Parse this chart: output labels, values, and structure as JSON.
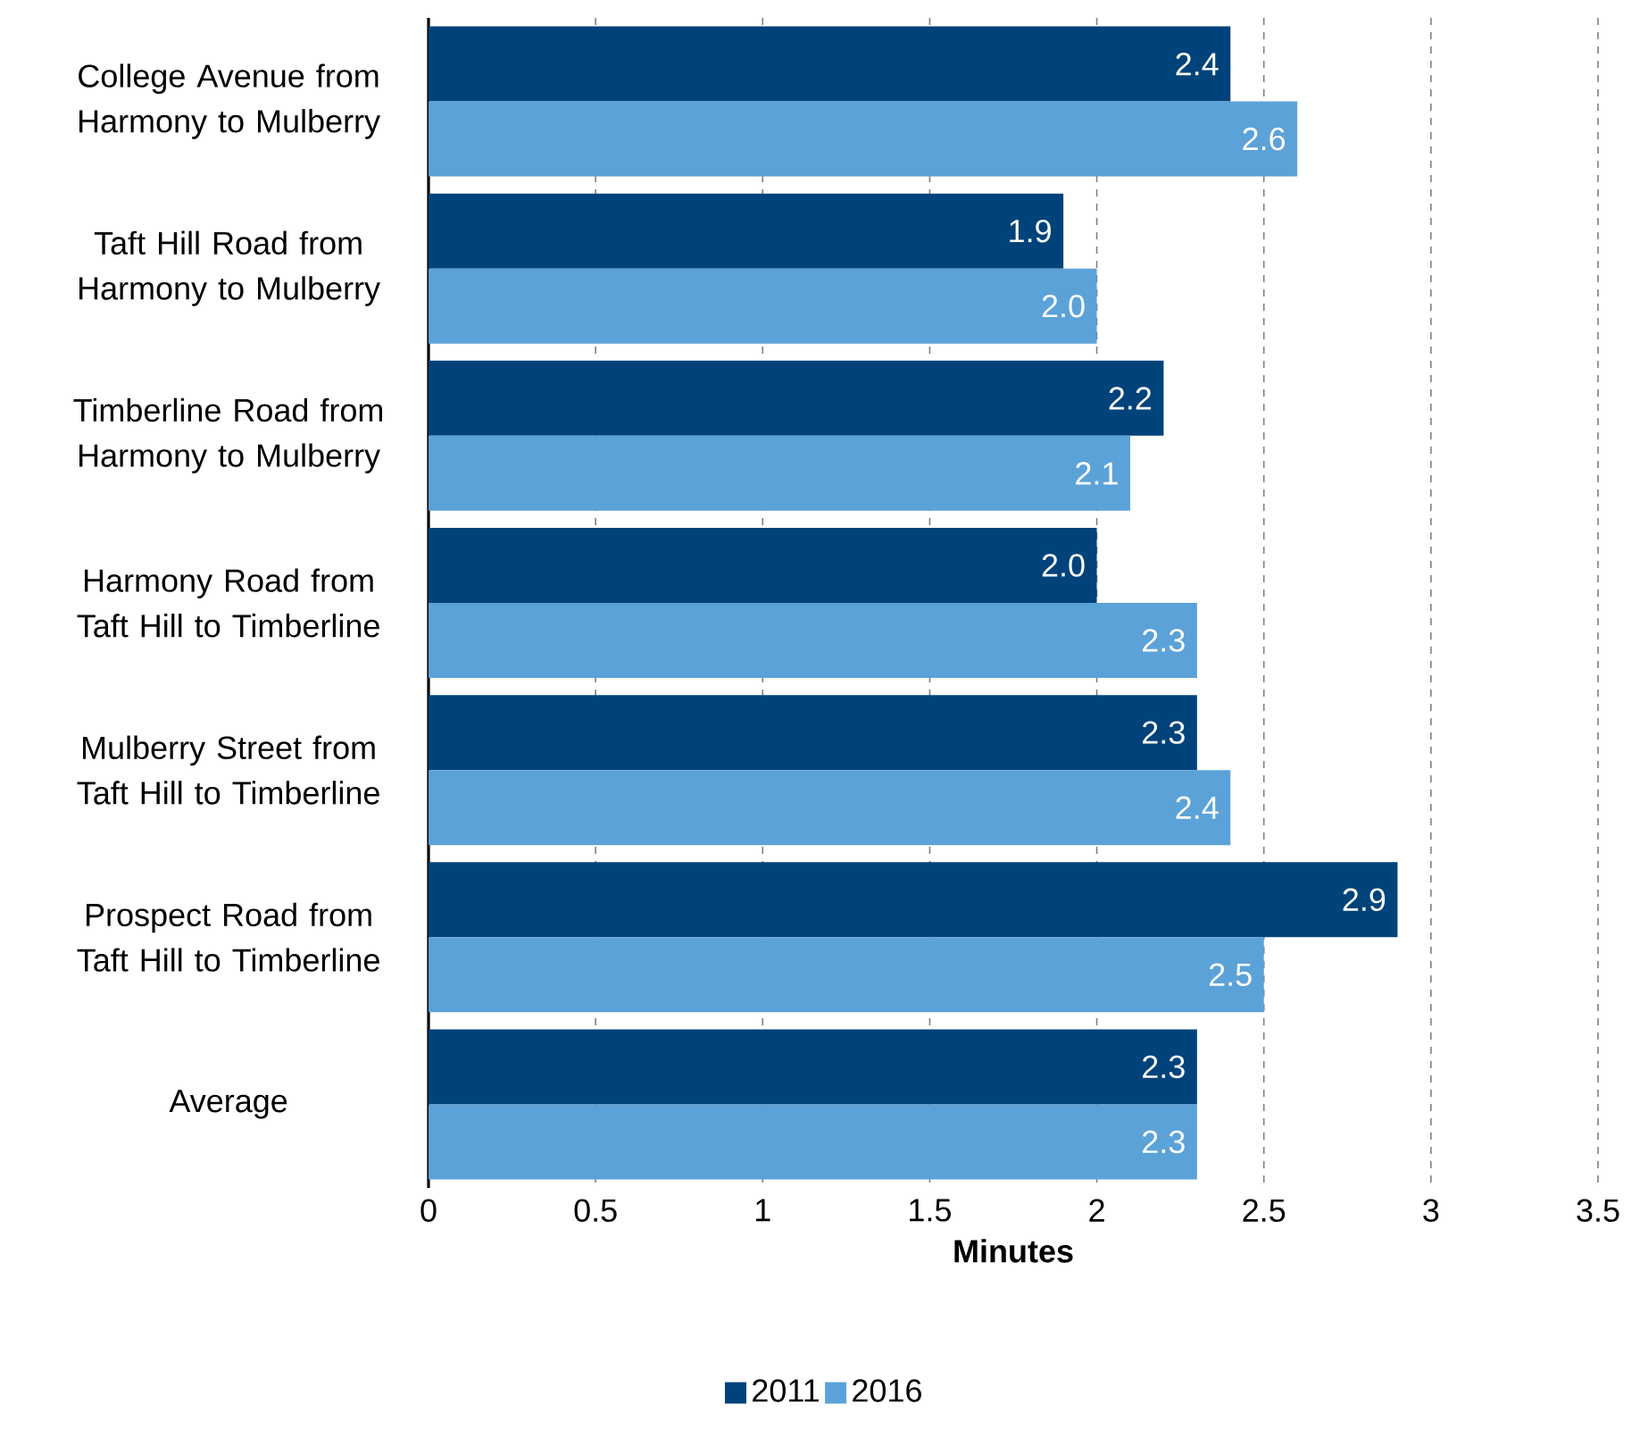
{
  "chart_data": {
    "type": "bar",
    "orientation": "horizontal",
    "xlabel": "Minutes",
    "categories": [
      "College Avenue from Harmony to Mulberry",
      "Taft Hill Road from Harmony to Mulberry",
      "Timberline Road from Harmony to Mulberry",
      "Harmony Road from Taft Hill to Timberline",
      "Mulberry Street from Taft Hill to Timberline",
      "Prospect Road from Taft Hill to Timberline",
      "Average"
    ],
    "series": [
      {
        "name": "2011",
        "color": "#00437a",
        "values": [
          2.4,
          1.9,
          2.2,
          2.0,
          2.3,
          2.9,
          2.3
        ],
        "value_labels": [
          "2.4",
          "1.9",
          "2.2",
          "2.0",
          "2.3",
          "2.9",
          "2.3"
        ]
      },
      {
        "name": "2016",
        "color": "#5ba2d8",
        "values": [
          2.6,
          2.0,
          2.1,
          2.3,
          2.4,
          2.5,
          2.3
        ],
        "value_labels": [
          "2.6",
          "2.0",
          "2.1",
          "2.3",
          "2.4",
          "2.5",
          "2.3"
        ]
      }
    ],
    "xlim": [
      0,
      3.5
    ],
    "xticks": [
      0,
      0.5,
      1,
      1.5,
      2,
      2.5,
      3,
      3.5
    ],
    "grid": "x",
    "legend": "bottom"
  }
}
